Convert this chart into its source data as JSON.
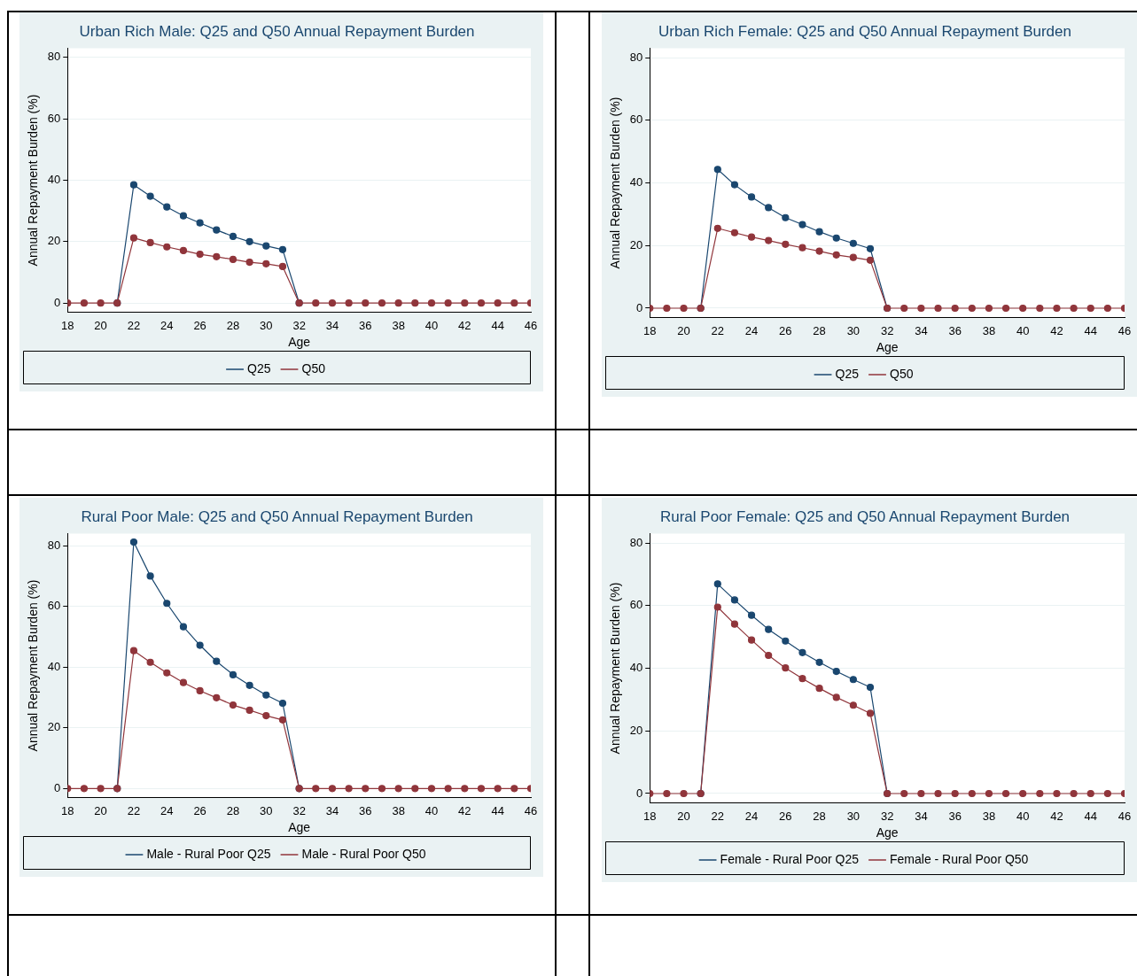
{
  "chart_data": [
    {
      "type": "line",
      "title": "Urban Rich Male: Q25 and Q50 Annual Repayment Burden",
      "xlabel": "Age",
      "ylabel": "Annual Repayment Burden (%)",
      "x": [
        18,
        19,
        20,
        21,
        22,
        23,
        24,
        25,
        26,
        27,
        28,
        29,
        30,
        31,
        32,
        33,
        34,
        35,
        36,
        37,
        38,
        39,
        40,
        41,
        42,
        43,
        44,
        45,
        46
      ],
      "xlim": [
        18,
        46
      ],
      "xticks": [
        18,
        20,
        22,
        24,
        26,
        28,
        30,
        32,
        34,
        36,
        38,
        40,
        42,
        44,
        46
      ],
      "ylim": [
        -3,
        83
      ],
      "yticks": [
        0,
        20,
        40,
        60,
        80
      ],
      "grid": "y",
      "legend": "bottom",
      "marker": "circle",
      "line_style": "solid",
      "series": [
        {
          "name": "Q25",
          "color": "#1a476f",
          "values": [
            null,
            null,
            null,
            0,
            38.5,
            34.8,
            31.3,
            28.4,
            26.1,
            23.8,
            21.7,
            20,
            18.6,
            17.4,
            0,
            null,
            null,
            null,
            null,
            null,
            null,
            null,
            null,
            null,
            null,
            null,
            null,
            null,
            null
          ]
        },
        {
          "name": "Q50",
          "color": "#90353b",
          "values": [
            0,
            0,
            0,
            0,
            21.2,
            19.7,
            18.3,
            17.1,
            15.9,
            15.1,
            14.2,
            13.3,
            12.8,
            11.9,
            0,
            0,
            0,
            0,
            0,
            0,
            0,
            0,
            0,
            0,
            0,
            0,
            0,
            0,
            0
          ]
        }
      ]
    },
    {
      "type": "line",
      "title": "Urban Rich Female: Q25 and Q50 Annual Repayment Burden",
      "xlabel": "Age",
      "ylabel": "Annual Repayment Burden (%)",
      "x": [
        18,
        19,
        20,
        21,
        22,
        23,
        24,
        25,
        26,
        27,
        28,
        29,
        30,
        31,
        32,
        33,
        34,
        35,
        36,
        37,
        38,
        39,
        40,
        41,
        42,
        43,
        44,
        45,
        46
      ],
      "xlim": [
        18,
        46
      ],
      "xticks": [
        18,
        20,
        22,
        24,
        26,
        28,
        30,
        32,
        34,
        36,
        38,
        40,
        42,
        44,
        46
      ],
      "ylim": [
        -3,
        83
      ],
      "yticks": [
        0,
        20,
        40,
        60,
        80
      ],
      "grid": "y",
      "legend": "bottom",
      "marker": "circle",
      "line_style": "solid",
      "series": [
        {
          "name": "Q25",
          "color": "#1a476f",
          "values": [
            null,
            null,
            null,
            0,
            44.3,
            39.4,
            35.5,
            32.1,
            28.9,
            26.7,
            24.4,
            22.4,
            20.7,
            19,
            0,
            null,
            null,
            null,
            null,
            null,
            null,
            null,
            null,
            null,
            null,
            null,
            null,
            null,
            null
          ]
        },
        {
          "name": "Q50",
          "color": "#90353b",
          "values": [
            0,
            0,
            0,
            0,
            25.5,
            24.1,
            22.7,
            21.6,
            20.4,
            19.3,
            18.2,
            17,
            16.2,
            15.3,
            0,
            0,
            0,
            0,
            0,
            0,
            0,
            0,
            0,
            0,
            0,
            0,
            0,
            0,
            0
          ]
        }
      ]
    },
    {
      "type": "line",
      "title": "Rural Poor Male: Q25 and Q50 Annual Repayment Burden",
      "xlabel": "Age",
      "ylabel": "Annual Repayment Burden (%)",
      "x": [
        18,
        19,
        20,
        21,
        22,
        23,
        24,
        25,
        26,
        27,
        28,
        29,
        30,
        31,
        32,
        33,
        34,
        35,
        36,
        37,
        38,
        39,
        40,
        41,
        42,
        43,
        44,
        45,
        46
      ],
      "xlim": [
        18,
        46
      ],
      "xticks": [
        18,
        20,
        22,
        24,
        26,
        28,
        30,
        32,
        34,
        36,
        38,
        40,
        42,
        44,
        46
      ],
      "ylim": [
        -3,
        84
      ],
      "yticks": [
        0,
        20,
        40,
        60,
        80
      ],
      "grid": "y",
      "legend": "bottom",
      "marker": "circle",
      "line_style": "solid",
      "series": [
        {
          "name": "Male - Rural Poor Q25",
          "color": "#1a476f",
          "values": [
            null,
            null,
            null,
            0,
            81.2,
            70,
            61,
            53.3,
            47.2,
            41.9,
            37.5,
            34,
            30.8,
            28.1,
            0,
            null,
            null,
            null,
            null,
            null,
            null,
            null,
            null,
            null,
            null,
            null,
            null,
            null,
            null
          ]
        },
        {
          "name": "Male - Rural Poor Q50",
          "color": "#90353b",
          "values": [
            0,
            0,
            0,
            0,
            45.4,
            41.6,
            38.1,
            34.9,
            32.2,
            29.9,
            27.5,
            25.8,
            24,
            22.6,
            0,
            0,
            0,
            0,
            0,
            0,
            0,
            0,
            0,
            0,
            0,
            0,
            0,
            0,
            0
          ]
        }
      ]
    },
    {
      "type": "line",
      "title": "Rural Poor Female: Q25 and Q50 Annual Repayment Burden",
      "xlabel": "Age",
      "ylabel": "Annual Repayment Burden (%)",
      "x": [
        18,
        19,
        20,
        21,
        22,
        23,
        24,
        25,
        26,
        27,
        28,
        29,
        30,
        31,
        32,
        33,
        34,
        35,
        36,
        37,
        38,
        39,
        40,
        41,
        42,
        43,
        44,
        45,
        46
      ],
      "xlim": [
        18,
        46
      ],
      "xticks": [
        18,
        20,
        22,
        24,
        26,
        28,
        30,
        32,
        34,
        36,
        38,
        40,
        42,
        44,
        46
      ],
      "ylim": [
        -3,
        83
      ],
      "yticks": [
        0,
        20,
        40,
        60,
        80
      ],
      "grid": "y",
      "legend": "bottom",
      "marker": "circle",
      "line_style": "solid",
      "series": [
        {
          "name": "Female - Rural Poor Q25",
          "color": "#1a476f",
          "values": [
            null,
            null,
            null,
            0,
            66.9,
            61.8,
            56.9,
            52.4,
            48.7,
            45,
            41.9,
            39,
            36.4,
            33.9,
            0,
            null,
            null,
            null,
            null,
            null,
            null,
            null,
            null,
            null,
            null,
            null,
            null,
            null,
            null
          ]
        },
        {
          "name": "Female - Rural Poor Q50",
          "color": "#90353b",
          "values": [
            0,
            0,
            0,
            0,
            59.5,
            54.1,
            49,
            44.1,
            40.1,
            36.7,
            33.6,
            30.7,
            28.2,
            25.6,
            0,
            0,
            0,
            0,
            0,
            0,
            0,
            0,
            0,
            0,
            0,
            0,
            0,
            0,
            0
          ]
        }
      ]
    }
  ]
}
